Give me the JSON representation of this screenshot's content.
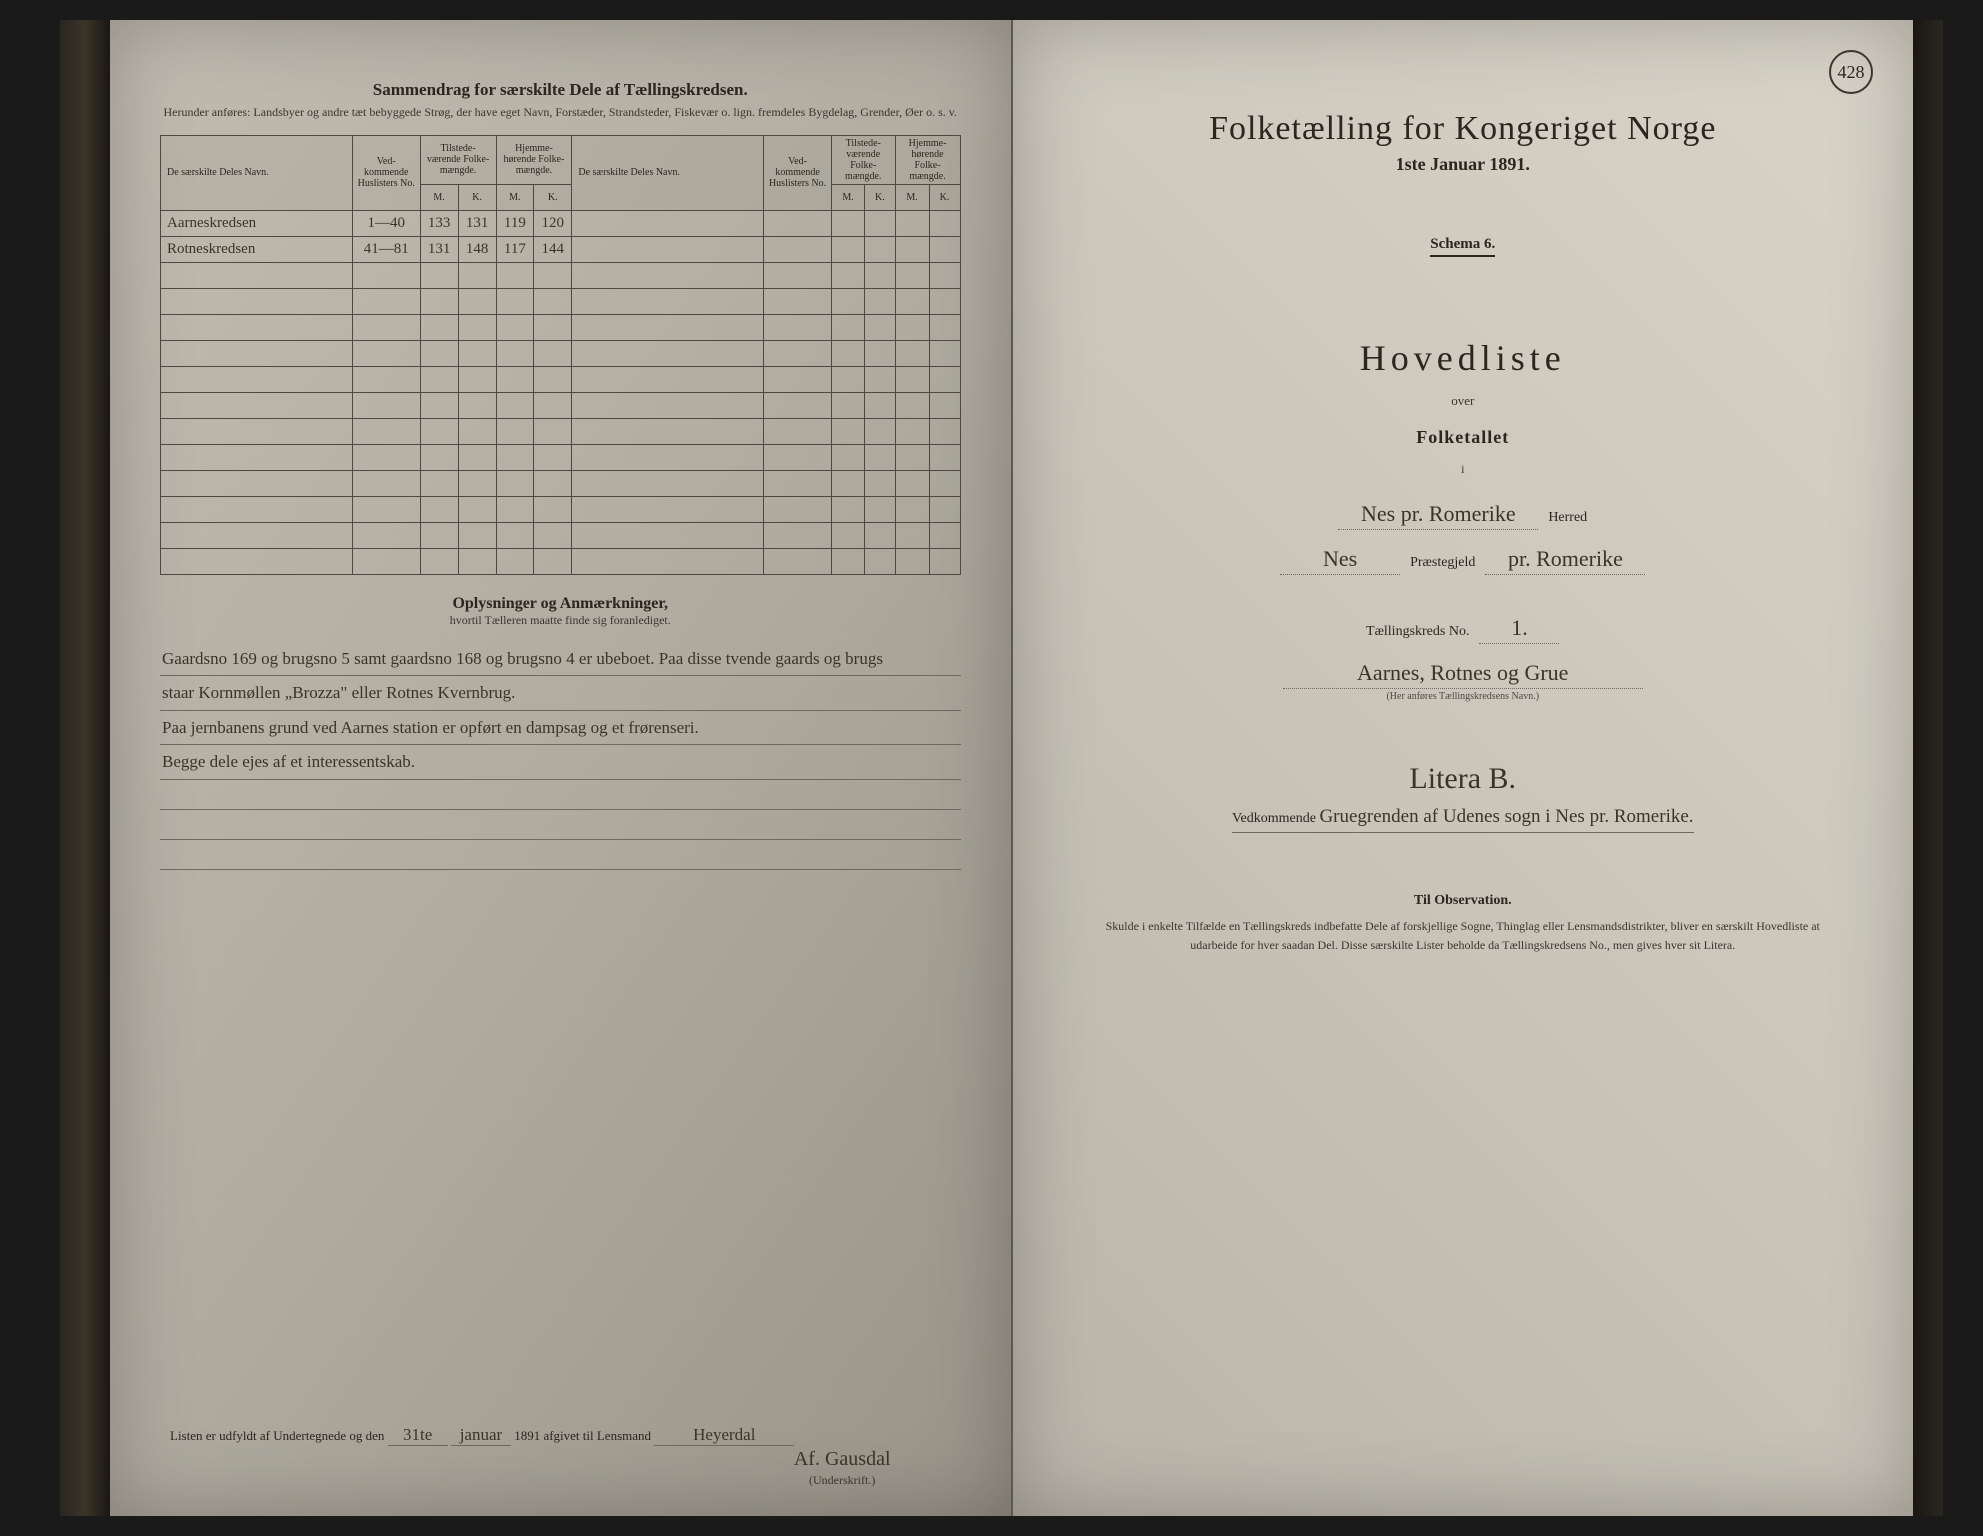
{
  "pageNumber": "428",
  "left": {
    "summaryTitle": "Sammendrag for særskilte Dele af Tællingskredsen.",
    "summarySub": "Herunder anføres: Landsbyer og andre tæt bebyggede Strøg, der have eget Navn, Forstæder, Strandsteder, Fiskevær o. lign. fremdeles Bygdelag, Grender, Øer o. s. v.",
    "headers": {
      "name": "De særskilte Deles Navn.",
      "husl": "Ved-kommende Huslisters No.",
      "tilst": "Tilstede-værende Folke-mængde.",
      "hjem": "Hjemme-hørende Folke-mængde.",
      "m": "M.",
      "k": "K."
    },
    "rows": [
      {
        "name": "Aarneskredsen",
        "husl": "1—40",
        "tm": "133",
        "tk": "131",
        "hm": "119",
        "hk": "120"
      },
      {
        "name": "Rotneskredsen",
        "husl": "41—81",
        "tm": "131",
        "tk": "148",
        "hm": "117",
        "hk": "144"
      }
    ],
    "notesTitle": "Oplysninger og Anmærkninger,",
    "notesSub": "hvortil Tælleren maatte finde sig foranlediget.",
    "notesLines": [
      "Gaardsno 169 og brugsno 5 samt gaardsno 168 og brugsno 4 er ubeboet. Paa disse tvende gaards og brugs",
      "staar Kornmøllen „Brozza\" eller Rotnes Kvernbrug.",
      "Paa jernbanens grund ved Aarnes station er opført en dampsag og et frørenseri.",
      "Begge dele ejes af et interessentskab.",
      "",
      "",
      ""
    ],
    "footer": {
      "prefix": "Listen er udfyldt af Undertegnede og den",
      "day": "31te",
      "month": "januar",
      "yearText": "1891 afgivet til Lensmand",
      "lensmand": "Heyerdal",
      "signature": "Af. Gausdal",
      "sigLabel": "(Underskrift.)"
    }
  },
  "right": {
    "title": "Folketælling for Kongeriget Norge",
    "date": "1ste Januar 1891.",
    "schema": "Schema 6.",
    "hoved": "Hovedliste",
    "over": "over",
    "folke": "Folketallet",
    "i": "i",
    "herredVal": "Nes pr. Romerike",
    "herredLabel": "Herred",
    "prgjVal": "Nes",
    "prgjLabel": "Præstegjeld",
    "prgjSuffix": "pr. Romerike",
    "kredsLabel": "Tællingskreds No.",
    "kredsNo": "1.",
    "kredsName": "Aarnes, Rotnes og Grue",
    "kredsCaption": "(Her anføres Tællingskredsens Navn.)",
    "litera": "Litera B.",
    "vedPrefix": "Vedkommende",
    "vedHw": "Gruegrenden af Udenes sogn i Nes pr. Romerike.",
    "obsTitle": "Til Observation.",
    "obsText": "Skulde i enkelte Tilfælde en Tællingskreds indbefatte Dele af forskjellige Sogne, Thinglag eller Lensmandsdistrikter, bliver en særskilt Hovedliste at udarbeide for hver saadan Del. Disse særskilte Lister beholde da Tællingskredsens No., men gives hver sit Litera."
  }
}
